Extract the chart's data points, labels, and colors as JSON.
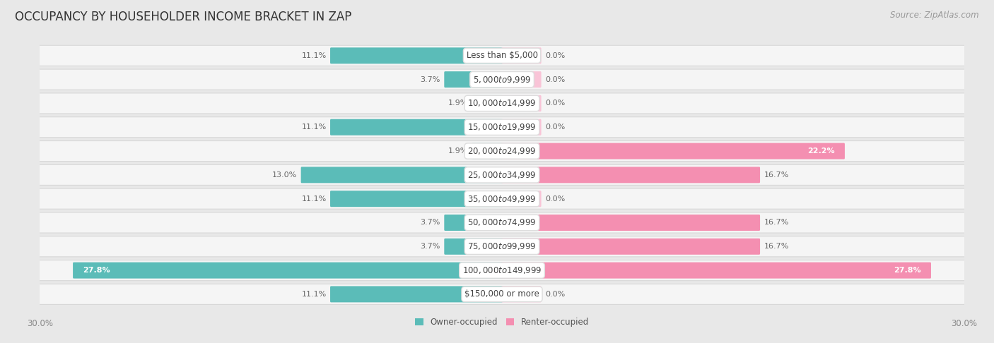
{
  "title": "OCCUPANCY BY HOUSEHOLDER INCOME BRACKET IN ZAP",
  "source": "Source: ZipAtlas.com",
  "categories": [
    "Less than $5,000",
    "$5,000 to $9,999",
    "$10,000 to $14,999",
    "$15,000 to $19,999",
    "$20,000 to $24,999",
    "$25,000 to $34,999",
    "$35,000 to $49,999",
    "$50,000 to $74,999",
    "$75,000 to $99,999",
    "$100,000 to $149,999",
    "$150,000 or more"
  ],
  "owner_values": [
    11.1,
    3.7,
    1.9,
    11.1,
    1.9,
    13.0,
    11.1,
    3.7,
    3.7,
    27.8,
    11.1
  ],
  "renter_values": [
    0.0,
    0.0,
    0.0,
    0.0,
    22.2,
    16.7,
    0.0,
    16.7,
    16.7,
    27.8,
    0.0
  ],
  "owner_color": "#5bbcb8",
  "renter_color": "#f48fb1",
  "renter_color_light": "#f9c4d7",
  "background_color": "#e8e8e8",
  "bar_background": "#f5f5f5",
  "bar_border_color": "#d8d8d8",
  "xlim": 30.0,
  "title_fontsize": 12,
  "source_fontsize": 8.5,
  "label_fontsize": 8,
  "tick_fontsize": 8.5,
  "legend_fontsize": 8.5,
  "category_fontsize": 8.5,
  "small_renter_val": 2.5
}
